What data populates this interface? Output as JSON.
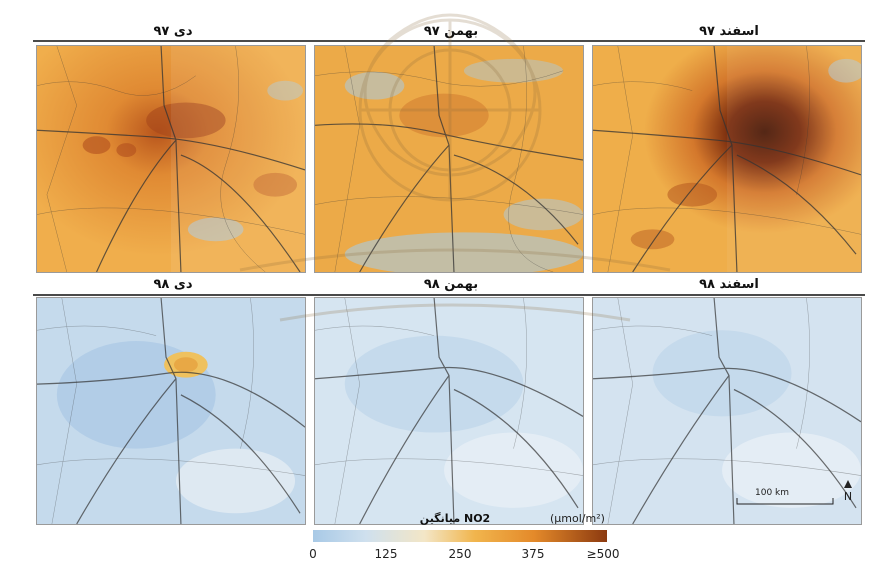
{
  "panels": [
    {
      "title": "دی ۹۷",
      "theme": "orange"
    },
    {
      "title": "بهمن ۹۷",
      "theme": "orange"
    },
    {
      "title": "اسفند ۹۷",
      "theme": "orange"
    },
    {
      "title": "دی ۹۸",
      "theme": "blue"
    },
    {
      "title": "بهمن ۹۸",
      "theme": "blue"
    },
    {
      "title": "اسفند ۹۸",
      "theme": "blue"
    }
  ],
  "scale_bar": {
    "label": "100 km"
  },
  "north_arrow": {
    "icon": "north-arrow-icon"
  },
  "legend": {
    "title": "NO2 میانگین",
    "unit": "(μmol/m²)",
    "ticks": [
      "0",
      "125",
      "250",
      "375",
      "≥500"
    ]
  },
  "colors": {
    "low": "#a8c9e6",
    "mid": "#f1b54d",
    "high": "#8c3a10"
  }
}
